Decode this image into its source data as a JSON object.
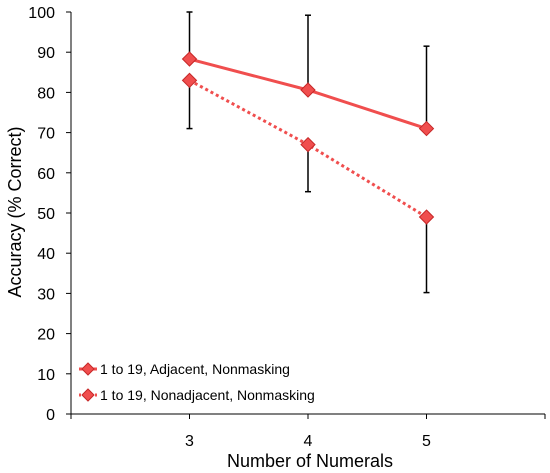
{
  "chart_data": {
    "type": "line",
    "xlabel": "Number of Numerals",
    "ylabel": "Accuracy (% Correct)",
    "categories": [
      "3",
      "4",
      "5"
    ],
    "ylim": [
      0,
      100
    ],
    "yticks": [
      0,
      10,
      20,
      30,
      40,
      50,
      60,
      70,
      80,
      90,
      100
    ],
    "grid": false,
    "legend_position": "bottom-left",
    "series": [
      {
        "name": "1 to 19, Adjacent, Nonmasking",
        "values": [
          88.3,
          80.6,
          71.0
        ],
        "error_upper": [
          100,
          99.2,
          91.5
        ],
        "error_lower": [
          null,
          null,
          null
        ],
        "color": "#f04e4e",
        "line_style": "solid",
        "marker": "diamond"
      },
      {
        "name": "1 to 19, Nonadjacent, Nonmasking",
        "values": [
          83.0,
          67.0,
          49.0
        ],
        "error_upper": [
          null,
          null,
          null
        ],
        "error_lower": [
          71.0,
          55.3,
          30.2
        ],
        "color": "#f04e4e",
        "line_style": "dotted",
        "marker": "diamond"
      }
    ]
  }
}
